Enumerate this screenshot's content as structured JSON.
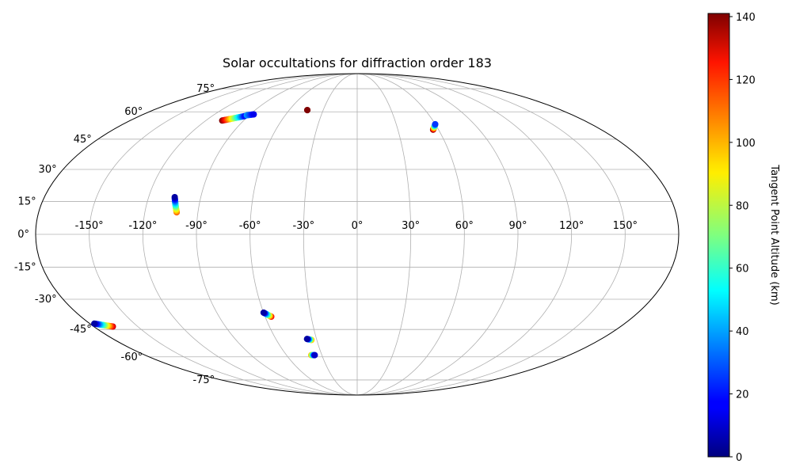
{
  "chart_data": {
    "type": "scatter",
    "projection": "mollweide",
    "title": "Solar occultations for diffraction order 183",
    "colorbar": {
      "label": "Tangent Point Altitude (km)",
      "range": [
        0,
        141
      ],
      "ticks": [
        "0",
        "20",
        "40",
        "60",
        "80",
        "100",
        "120",
        "140"
      ],
      "tick_values": [
        0,
        20,
        40,
        60,
        80,
        100,
        120,
        140
      ],
      "colormap": "jet",
      "placement": "right"
    },
    "longitude_ticks": [
      {
        "value": -150,
        "label": "-150°"
      },
      {
        "value": -120,
        "label": "-120°"
      },
      {
        "value": -90,
        "label": "-90°"
      },
      {
        "value": -60,
        "label": "-60°"
      },
      {
        "value": -30,
        "label": "-30°"
      },
      {
        "value": 0,
        "label": "0°"
      },
      {
        "value": 30,
        "label": "30°"
      },
      {
        "value": 60,
        "label": "60°"
      },
      {
        "value": 90,
        "label": "90°"
      },
      {
        "value": 120,
        "label": "120°"
      },
      {
        "value": 150,
        "label": "150°"
      }
    ],
    "latitude_ticks": [
      {
        "value": 75,
        "label": "75°"
      },
      {
        "value": 60,
        "label": "60°"
      },
      {
        "value": 45,
        "label": "45°"
      },
      {
        "value": 30,
        "label": "30°"
      },
      {
        "value": 15,
        "label": "15°"
      },
      {
        "value": 0,
        "label": "0°"
      },
      {
        "value": -15,
        "label": "-15°"
      },
      {
        "value": -30,
        "label": "-30°"
      },
      {
        "value": -45,
        "label": "-45°"
      },
      {
        "value": -60,
        "label": "-60°"
      },
      {
        "value": -75,
        "label": "-75°"
      }
    ],
    "grid": true,
    "occultations": [
      {
        "lon_start": -93,
        "lat_start": 57.5,
        "alt_start": 20,
        "lon_end": -107,
        "lat_end": 55,
        "alt_end": 140,
        "count": 20
      },
      {
        "lon_start": -87,
        "lat_start": 58.5,
        "alt_start": 15,
        "lon_end": -92,
        "lat_end": 58,
        "alt_end": 40,
        "count": 8
      },
      {
        "lon_start": -44,
        "lat_start": 61,
        "alt_start": 141,
        "lon_end": -44,
        "lat_end": 61,
        "alt_end": 141,
        "count": 3
      },
      {
        "lon_start": 60,
        "lat_start": 53,
        "alt_start": 25,
        "lon_end": 56,
        "lat_end": 50,
        "alt_end": 140,
        "count": 16
      },
      {
        "lon_start": -105,
        "lat_start": 17,
        "alt_start": 5,
        "lon_end": -102,
        "lat_end": 10,
        "alt_end": 110,
        "count": 18
      },
      {
        "lon_start": -177,
        "lat_start": -42,
        "alt_start": 5,
        "lon_end": -167,
        "lat_end": -43.5,
        "alt_end": 130,
        "count": 18
      },
      {
        "lon_start": -60,
        "lat_start": -36.5,
        "alt_start": 5,
        "lon_end": -56,
        "lat_end": -38.5,
        "alt_end": 125,
        "count": 14
      },
      {
        "lon_start": -37,
        "lat_start": -50,
        "alt_start": 5,
        "lon_end": -34,
        "lat_end": -50.5,
        "alt_end": 100,
        "count": 10
      },
      {
        "lon_start": -39,
        "lat_start": -59,
        "alt_start": 100,
        "lon_end": -36,
        "lat_end": -59,
        "alt_end": 10,
        "count": 10
      }
    ]
  }
}
